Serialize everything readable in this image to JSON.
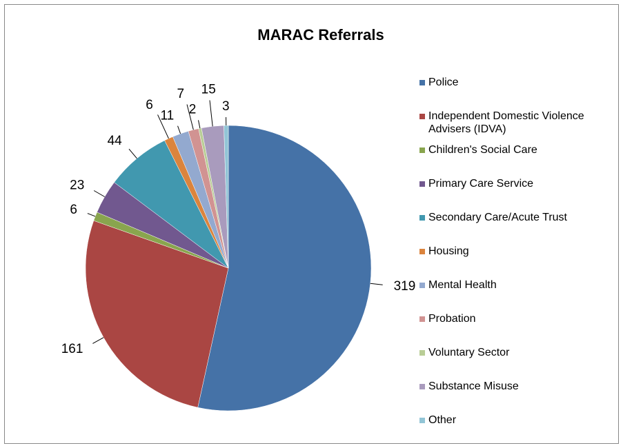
{
  "chart_data": {
    "type": "pie",
    "title": "MARAC Referrals",
    "categories": [
      "Police",
      "Independent Domestic Violence Advisers (IDVA)",
      "Children's Social Care",
      "Primary Care Service",
      "Secondary Care/Acute Trust",
      "Housing",
      "Mental Health",
      "Probation",
      "Voluntary Sector",
      "Substance Misuse",
      "Other"
    ],
    "values": [
      319,
      161,
      6,
      23,
      44,
      6,
      11,
      7,
      2,
      15,
      3
    ],
    "colors": [
      "#4572a7",
      "#aa4643",
      "#89a54e",
      "#71588f",
      "#4198af",
      "#db843d",
      "#93a9cf",
      "#d19392",
      "#b9cd96",
      "#a99bbd",
      "#92c5d6"
    ],
    "legend": "right"
  }
}
